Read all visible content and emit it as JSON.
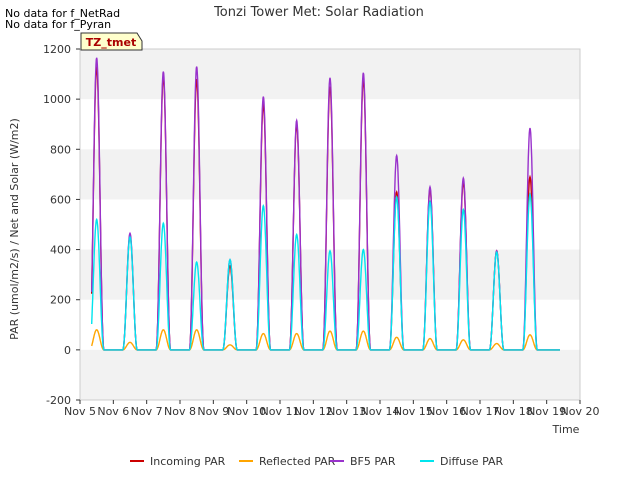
{
  "notes": [
    "No data for f_NetRad",
    "No data for f_Pyran"
  ],
  "chart_data": {
    "type": "line",
    "title": "Tonzi Tower Met: Solar Radiation",
    "xlabel": "Time",
    "ylabel": "PAR (umol/m2/s) / Net and Solar (W/m2)",
    "badge": "TZ_tmet",
    "xlim": [
      5,
      20
    ],
    "ylim": [
      -200,
      1200
    ],
    "x_ticks": [
      5,
      6,
      7,
      8,
      9,
      10,
      11,
      12,
      13,
      14,
      15,
      16,
      17,
      18,
      19,
      20
    ],
    "x_tick_labels": [
      "Nov 5",
      "Nov 6",
      "Nov 7",
      "Nov 8",
      "Nov 9",
      "Nov 10",
      "Nov 11",
      "Nov 12",
      "Nov 13",
      "Nov 14",
      "Nov 15",
      "Nov 16",
      "Nov 17",
      "Nov 18",
      "Nov 19",
      "Nov 20"
    ],
    "y_ticks": [
      -200,
      0,
      200,
      400,
      600,
      800,
      1000,
      1200
    ],
    "y_tick_labels": [
      "-200",
      "0",
      "200",
      "400",
      "600",
      "800",
      "1000",
      "1200"
    ],
    "bands": [
      [
        1000,
        1200
      ],
      [
        600,
        800
      ],
      [
        200,
        400
      ],
      [
        -200,
        0
      ]
    ],
    "band_color": "#f2f2f2",
    "day_range": [
      5.35,
      19.4
    ],
    "series": [
      {
        "name": "Incoming PAR",
        "color": "#cc0000",
        "peaks": [
          1130,
          455,
          1090,
          1080,
          335,
          980,
          900,
          1050,
          1080,
          630,
          640,
          670,
          395,
          690
        ]
      },
      {
        "name": "Reflected PAR",
        "color": "#ffa500",
        "peaks": [
          80,
          30,
          80,
          80,
          20,
          65,
          65,
          75,
          75,
          50,
          45,
          40,
          25,
          60
        ]
      },
      {
        "name": "BF5 PAR",
        "color": "#9932cc",
        "peaks": [
          1165,
          465,
          1110,
          1130,
          360,
          1010,
          915,
          1085,
          1105,
          775,
          650,
          685,
          395,
          885
        ]
      },
      {
        "name": "Diffuse PAR",
        "color": "#00e5ee",
        "peaks": [
          520,
          450,
          505,
          350,
          360,
          575,
          460,
          395,
          400,
          610,
          590,
          560,
          390,
          620
        ]
      }
    ]
  }
}
